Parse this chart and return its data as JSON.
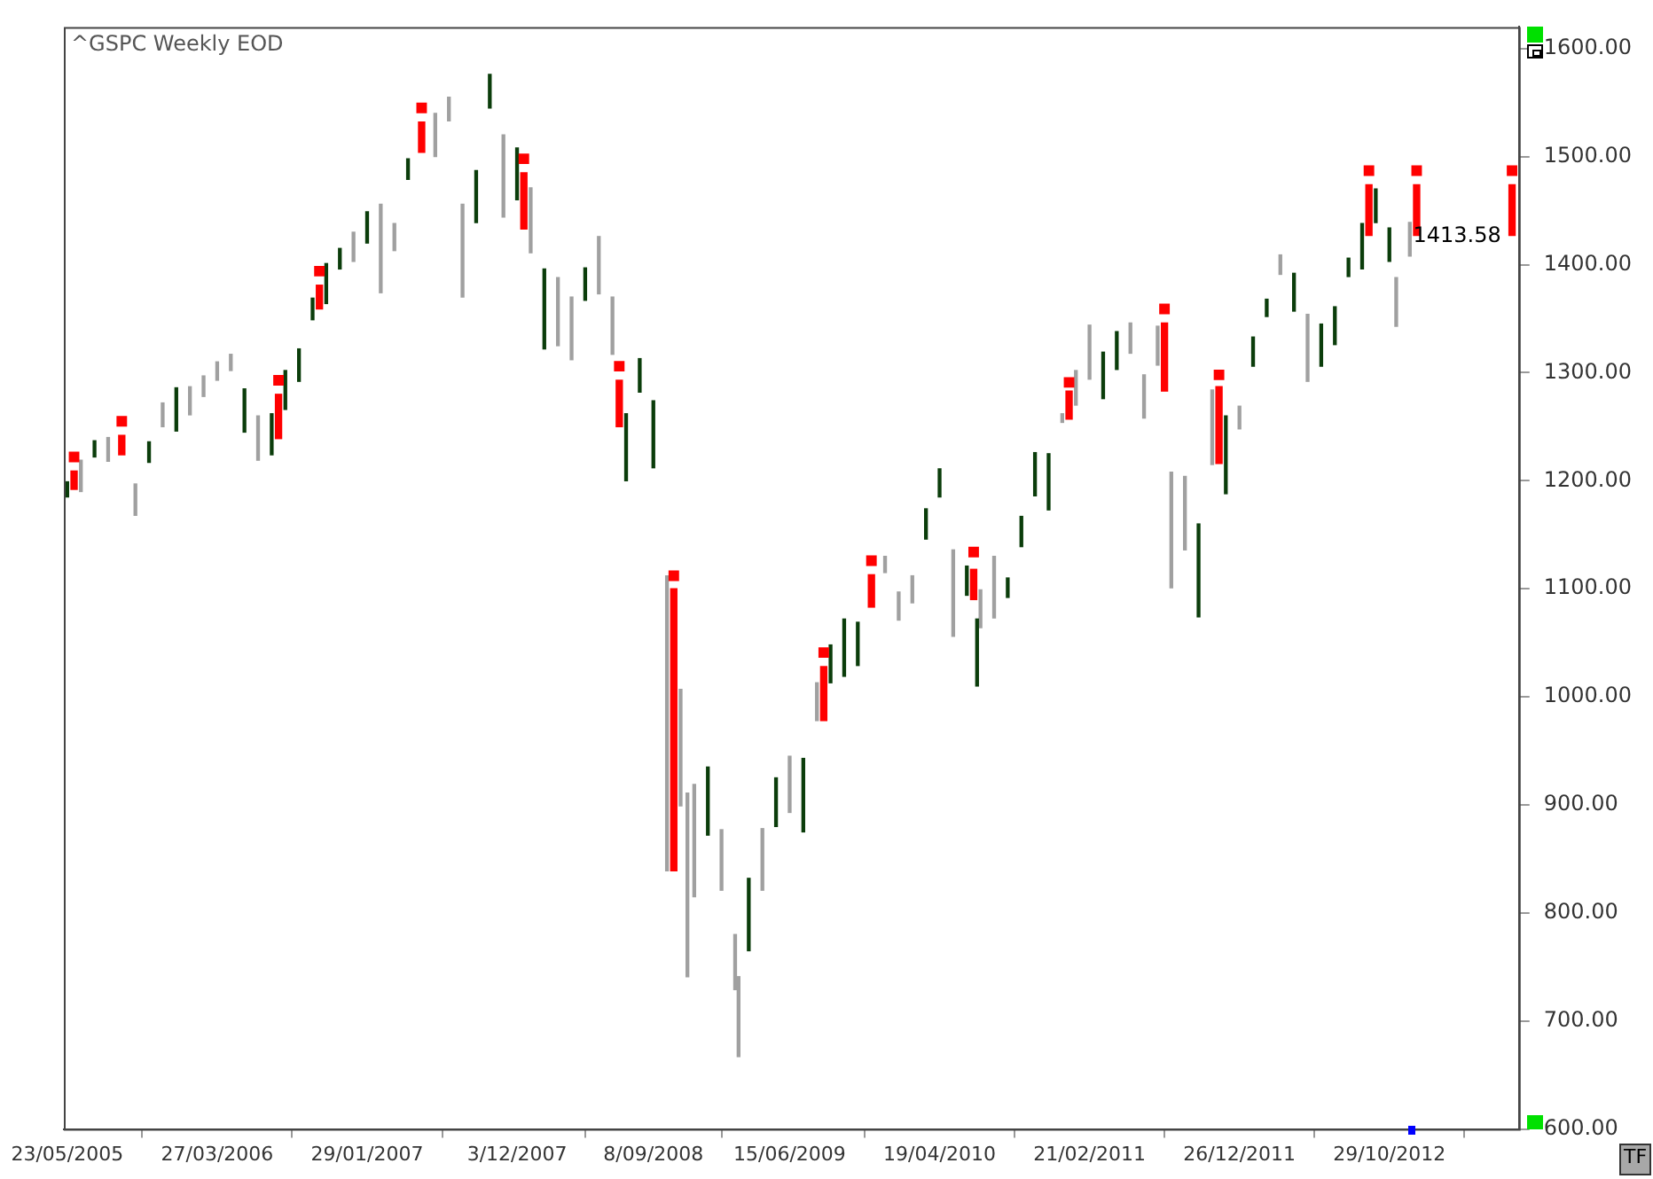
{
  "chart_data": {
    "type": "bar",
    "title": "^GSPC Weekly EOD",
    "xlim": [
      "2005-05-16",
      "2013-07-22"
    ],
    "xticks": [
      {
        "value": "2005-05-23",
        "label": "23/05/2005"
      },
      {
        "value": "2006-03-27",
        "label": "27/03/2006"
      },
      {
        "value": "2007-01-29",
        "label": "29/01/2007"
      },
      {
        "value": "2007-12-03",
        "label": "3/12/2007"
      },
      {
        "value": "2008-09-08",
        "label": "8/09/2008"
      },
      {
        "value": "2009-06-15",
        "label": "15/06/2009"
      },
      {
        "value": "2010-04-19",
        "label": "19/04/2010"
      },
      {
        "value": "2011-02-21",
        "label": "21/02/2011"
      },
      {
        "value": "2011-12-26",
        "label": "26/12/2011"
      },
      {
        "value": "2012-10-29",
        "label": "29/10/2012"
      }
    ],
    "ylim": [
      600,
      1620
    ],
    "yticks": [
      {
        "value": 600,
        "label": "600.00"
      },
      {
        "value": 700,
        "label": "700.00"
      },
      {
        "value": 800,
        "label": "800.00"
      },
      {
        "value": 900,
        "label": "900.00"
      },
      {
        "value": 1000,
        "label": "1000.00"
      },
      {
        "value": 1100,
        "label": "1100.00"
      },
      {
        "value": 1200,
        "label": "1200.00"
      },
      {
        "value": 1300,
        "label": "1300.00"
      },
      {
        "value": 1400,
        "label": "1400.00"
      },
      {
        "value": 1500,
        "label": "1500.00"
      },
      {
        "value": 1600,
        "label": "1600.00"
      }
    ],
    "annotations": [
      "1413.58",
      "TF"
    ],
    "series": [
      {
        "color": "#0b3d0b",
        "x": [
          "2005-05-23",
          "2005-07-18",
          "2005-11-07",
          "2006-01-02",
          "2006-05-22",
          "2006-07-17",
          "2006-08-14",
          "2006-09-11",
          "2006-10-09",
          "2006-11-06",
          "2006-12-04",
          "2007-01-29",
          "2007-04-23",
          "2007-09-10",
          "2007-10-08",
          "2007-12-03",
          "2008-01-28",
          "2008-04-21",
          "2008-07-14",
          "2008-08-11",
          "2008-09-08",
          "2008-12-29",
          "2009-03-23",
          "2009-05-18",
          "2009-07-13",
          "2009-09-07",
          "2009-10-05",
          "2009-11-02",
          "2010-03-22",
          "2010-04-19",
          "2010-06-14",
          "2010-07-05",
          "2010-09-06",
          "2010-10-04",
          "2010-11-01",
          "2010-11-29",
          "2011-03-21",
          "2011-04-18",
          "2011-10-03",
          "2011-11-28",
          "2012-01-23",
          "2012-02-20",
          "2012-04-16",
          "2012-06-11",
          "2012-07-09",
          "2012-08-06",
          "2012-09-03",
          "2012-10-01",
          "2012-10-29"
        ],
        "base": [
          1185,
          1222,
          1217,
          1246,
          1245,
          1224,
          1266,
          1292,
          1349,
          1364,
          1396,
          1420,
          1479,
          1439,
          1545,
          1460,
          1322,
          1367,
          1200,
          1282,
          1212,
          872,
          765,
          880,
          875,
          1013,
          1019,
          1029,
          1146,
          1185,
          1094,
          1010,
          1092,
          1139,
          1186,
          1173,
          1276,
          1303,
          1074,
          1188,
          1306,
          1352,
          1357,
          1306,
          1326,
          1389,
          1396,
          1439,
          1403
        ],
        "values": [
          14,
          15,
          19,
          40,
          40,
          38,
          36,
          30,
          20,
          37,
          19,
          29,
          19,
          48,
          31,
          48,
          74,
          30,
          62,
          31,
          62,
          63,
          67,
          45,
          68,
          35,
          53,
          40,
          28,
          26,
          27,
          62,
          18,
          28,
          40,
          52,
          43,
          35,
          86,
          72,
          27,
          16,
          35,
          39,
          35,
          17,
          42,
          31,
          31
        ]
      },
      {
        "color": "#a0a0a0",
        "x": [
          "2005-06-20",
          "2005-08-15",
          "2005-10-10",
          "2005-12-05",
          "2006-01-30",
          "2006-02-27",
          "2006-03-27",
          "2006-04-24",
          "2006-06-19",
          "2007-01-01",
          "2007-02-26",
          "2007-03-26",
          "2007-06-18",
          "2007-07-16",
          "2007-08-13",
          "2007-11-05",
          "2007-12-31",
          "2008-02-25",
          "2008-03-24",
          "2008-05-19",
          "2008-06-16",
          "2008-10-06",
          "2008-11-03",
          "2008-11-17",
          "2008-12-01",
          "2009-01-26",
          "2009-02-23",
          "2009-03-02",
          "2009-04-20",
          "2009-06-15",
          "2009-08-10",
          "2009-12-28",
          "2010-01-25",
          "2010-02-22",
          "2010-05-17",
          "2010-07-12",
          "2010-08-09",
          "2010-12-27",
          "2011-01-24",
          "2011-02-21",
          "2011-05-16",
          "2011-06-13",
          "2011-07-11",
          "2011-08-08",
          "2011-09-05",
          "2011-10-31",
          "2011-12-26",
          "2012-03-19",
          "2012-05-14",
          "2012-11-12",
          "2012-12-10"
        ],
        "base": [
          1190,
          1218,
          1168,
          1250,
          1261,
          1278,
          1293,
          1302,
          1219,
          1403,
          1374,
          1413,
          1500,
          1533,
          1370,
          1444,
          1411,
          1325,
          1312,
          1373,
          1317,
          839,
          899,
          741,
          815,
          821,
          729,
          667,
          821,
          893,
          978,
          1115,
          1071,
          1087,
          1056,
          1064,
          1073,
          1254,
          1270,
          1294,
          1318,
          1258,
          1307,
          1101,
          1136,
          1215,
          1248,
          1391,
          1292,
          1343,
          1408
        ],
        "values": [
          29,
          22,
          29,
          22,
          26,
          19,
          17,
          15,
          41,
          27,
          82,
          25,
          40,
          22,
          86,
          76,
          60,
          63,
          58,
          53,
          53,
          273,
          108,
          170,
          104,
          56,
          51,
          74,
          57,
          52,
          35,
          15,
          26,
          25,
          80,
          35,
          57,
          8,
          32,
          50,
          28,
          40,
          36,
          107,
          68,
          69,
          21,
          18,
          62,
          45,
          31
        ]
      },
      {
        "color": "#ff0000",
        "x": [
          "2005-06-06",
          "2005-09-12",
          "2006-07-31",
          "2006-10-23",
          "2007-05-21",
          "2007-12-17",
          "2008-06-30",
          "2008-10-20",
          "2009-08-24",
          "2009-11-30",
          "2010-06-28",
          "2011-01-10",
          "2011-07-25",
          "2011-11-14",
          "2012-09-17",
          "2012-12-24",
          "2013-07-08"
        ],
        "base": [
          1192,
          1224,
          1239,
          1359,
          1504,
          1433,
          1250,
          839,
          978,
          1083,
          1090,
          1257,
          1283,
          1216,
          1427,
          1427,
          1427
        ],
        "values": [
          17,
          18,
          41,
          22,
          28,
          52,
          43,
          261,
          50,
          30,
          28,
          26,
          63,
          71,
          47,
          47,
          47
        ]
      },
      {
        "type": "scatter",
        "color": "#ff0000",
        "marker": "square",
        "x": [
          "2005-06-06",
          "2005-09-12",
          "2006-07-31",
          "2006-10-23",
          "2007-05-21",
          "2007-12-17",
          "2008-06-30",
          "2008-10-20",
          "2009-08-24",
          "2009-11-30",
          "2010-06-28",
          "2011-01-10",
          "2011-07-25",
          "2011-11-14",
          "2012-09-17",
          "2012-12-24",
          "2013-07-08"
        ],
        "values": [
          1222,
          1255,
          1293,
          1394,
          1545,
          1498,
          1306,
          1112,
          1041,
          1126,
          1134,
          1291,
          1359,
          1298,
          1487,
          1487,
          1487
        ]
      }
    ]
  }
}
